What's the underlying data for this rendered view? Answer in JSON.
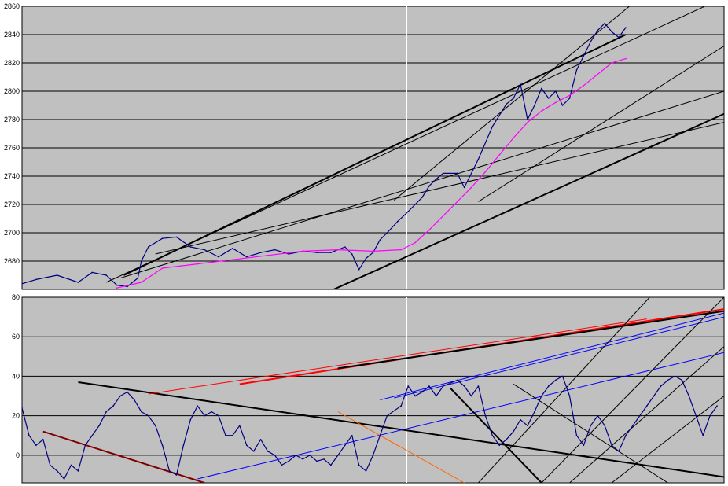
{
  "chart_data": [
    {
      "type": "line",
      "title": "",
      "xlabel": "",
      "ylabel": "",
      "ylim": [
        2660,
        2860
      ],
      "yticks": [
        "2860",
        "2840",
        "2820",
        "2800",
        "2780",
        "2760",
        "2740",
        "2720",
        "2700",
        "2680"
      ],
      "grid": true,
      "plot_background": "#c0c0c0",
      "series": [
        {
          "color": "#000080",
          "points": [
            [
              0,
              2664
            ],
            [
              0.02,
              2667
            ],
            [
              0.05,
              2670
            ],
            [
              0.08,
              2665
            ],
            [
              0.1,
              2672
            ],
            [
              0.12,
              2670
            ],
            [
              0.135,
              2663
            ],
            [
              0.15,
              2662
            ],
            [
              0.165,
              2668
            ],
            [
              0.17,
              2680
            ],
            [
              0.18,
              2690
            ],
            [
              0.2,
              2696
            ],
            [
              0.22,
              2697
            ],
            [
              0.24,
              2690
            ],
            [
              0.26,
              2688
            ],
            [
              0.28,
              2683
            ],
            [
              0.3,
              2689
            ],
            [
              0.32,
              2683
            ],
            [
              0.34,
              2686
            ],
            [
              0.36,
              2688
            ],
            [
              0.38,
              2685
            ],
            [
              0.4,
              2687
            ],
            [
              0.42,
              2686
            ],
            [
              0.44,
              2686
            ],
            [
              0.46,
              2690
            ],
            [
              0.47,
              2685
            ],
            [
              0.48,
              2674
            ],
            [
              0.49,
              2682
            ],
            [
              0.5,
              2686
            ],
            [
              0.51,
              2695
            ],
            [
              0.52,
              2700
            ],
            [
              0.535,
              2708
            ],
            [
              0.55,
              2715
            ],
            [
              0.57,
              2725
            ],
            [
              0.58,
              2733
            ],
            [
              0.59,
              2738
            ],
            [
              0.6,
              2742
            ],
            [
              0.62,
              2742
            ],
            [
              0.63,
              2732
            ],
            [
              0.65,
              2752
            ],
            [
              0.67,
              2775
            ],
            [
              0.69,
              2791
            ],
            [
              0.7,
              2795
            ],
            [
              0.71,
              2805
            ],
            [
              0.72,
              2780
            ],
            [
              0.73,
              2790
            ],
            [
              0.74,
              2802
            ],
            [
              0.75,
              2795
            ],
            [
              0.76,
              2800
            ],
            [
              0.77,
              2790
            ],
            [
              0.78,
              2795
            ],
            [
              0.79,
              2815
            ],
            [
              0.8,
              2825
            ],
            [
              0.81,
              2835
            ],
            [
              0.82,
              2843
            ],
            [
              0.83,
              2848
            ],
            [
              0.84,
              2842
            ],
            [
              0.85,
              2838
            ],
            [
              0.86,
              2845
            ]
          ]
        },
        {
          "color": "#ff00ff",
          "points": [
            [
              0.135,
              2661
            ],
            [
              0.17,
              2665
            ],
            [
              0.2,
              2675
            ],
            [
              0.25,
              2678
            ],
            [
              0.3,
              2681
            ],
            [
              0.35,
              2684
            ],
            [
              0.4,
              2687
            ],
            [
              0.45,
              2688
            ],
            [
              0.5,
              2687
            ],
            [
              0.54,
              2688
            ],
            [
              0.56,
              2693
            ],
            [
              0.58,
              2702
            ],
            [
              0.6,
              2712
            ],
            [
              0.62,
              2722
            ],
            [
              0.64,
              2732
            ],
            [
              0.66,
              2743
            ],
            [
              0.68,
              2755
            ],
            [
              0.7,
              2767
            ],
            [
              0.72,
              2778
            ],
            [
              0.74,
              2786
            ],
            [
              0.76,
              2792
            ],
            [
              0.78,
              2797
            ],
            [
              0.8,
              2804
            ],
            [
              0.82,
              2812
            ],
            [
              0.84,
              2820
            ],
            [
              0.86,
              2823
            ]
          ]
        }
      ],
      "trendlines": [
        {
          "color": "#000000",
          "width": 2,
          "points": [
            [
              0.145,
              2670
            ],
            [
              0.86,
              2840
            ]
          ]
        },
        {
          "color": "#000000",
          "width": 2,
          "points": [
            [
              0.435,
              2658
            ],
            [
              1.0,
              2784
            ]
          ]
        },
        {
          "color": "#000000",
          "width": 1,
          "points": [
            [
              0.12,
              2665
            ],
            [
              0.99,
              2864
            ]
          ]
        },
        {
          "color": "#000000",
          "width": 1,
          "points": [
            [
              0.14,
              2668
            ],
            [
              1.0,
              2800
            ]
          ]
        },
        {
          "color": "#000000",
          "width": 1,
          "points": [
            [
              0.19,
              2685
            ],
            [
              1.0,
              2778
            ]
          ]
        },
        {
          "color": "#000000",
          "width": 1,
          "points": [
            [
              0.53,
              2723
            ],
            [
              0.87,
              2862
            ]
          ]
        },
        {
          "color": "#000000",
          "width": 1,
          "points": [
            [
              0.65,
              2722
            ],
            [
              1.0,
              2832
            ]
          ]
        }
      ]
    },
    {
      "type": "line",
      "title": "",
      "xlabel": "",
      "ylabel": "",
      "ylim": [
        -14,
        80
      ],
      "yticks": [
        "80",
        "60",
        "40",
        "20",
        "0"
      ],
      "grid": true,
      "plot_background": "#c0c0c0",
      "series": [
        {
          "color": "#000080",
          "points": [
            [
              0,
              24
            ],
            [
              0.01,
              10
            ],
            [
              0.02,
              5
            ],
            [
              0.03,
              8
            ],
            [
              0.04,
              -5
            ],
            [
              0.05,
              -8
            ],
            [
              0.06,
              -12
            ],
            [
              0.07,
              -5
            ],
            [
              0.08,
              -8
            ],
            [
              0.09,
              5
            ],
            [
              0.1,
              10
            ],
            [
              0.11,
              15
            ],
            [
              0.12,
              22
            ],
            [
              0.13,
              25
            ],
            [
              0.14,
              30
            ],
            [
              0.15,
              32
            ],
            [
              0.16,
              28
            ],
            [
              0.17,
              22
            ],
            [
              0.18,
              20
            ],
            [
              0.19,
              15
            ],
            [
              0.2,
              5
            ],
            [
              0.21,
              -8
            ],
            [
              0.22,
              -10
            ],
            [
              0.23,
              5
            ],
            [
              0.24,
              18
            ],
            [
              0.25,
              25
            ],
            [
              0.26,
              20
            ],
            [
              0.27,
              22
            ],
            [
              0.28,
              20
            ],
            [
              0.29,
              10
            ],
            [
              0.3,
              10
            ],
            [
              0.31,
              15
            ],
            [
              0.32,
              5
            ],
            [
              0.33,
              2
            ],
            [
              0.34,
              8
            ],
            [
              0.35,
              2
            ],
            [
              0.36,
              0
            ],
            [
              0.37,
              -5
            ],
            [
              0.38,
              -3
            ],
            [
              0.39,
              0
            ],
            [
              0.4,
              -2
            ],
            [
              0.41,
              0
            ],
            [
              0.42,
              -3
            ],
            [
              0.43,
              -2
            ],
            [
              0.44,
              -5
            ],
            [
              0.45,
              0
            ],
            [
              0.46,
              5
            ],
            [
              0.47,
              10
            ],
            [
              0.48,
              -5
            ],
            [
              0.49,
              -8
            ],
            [
              0.5,
              0
            ],
            [
              0.51,
              10
            ],
            [
              0.52,
              20
            ],
            [
              0.54,
              25
            ],
            [
              0.55,
              35
            ],
            [
              0.56,
              30
            ],
            [
              0.57,
              32
            ],
            [
              0.58,
              35
            ],
            [
              0.59,
              30
            ],
            [
              0.6,
              35
            ],
            [
              0.62,
              38
            ],
            [
              0.63,
              35
            ],
            [
              0.64,
              30
            ],
            [
              0.65,
              35
            ],
            [
              0.66,
              20
            ],
            [
              0.67,
              10
            ],
            [
              0.68,
              5
            ],
            [
              0.69,
              8
            ],
            [
              0.7,
              12
            ],
            [
              0.71,
              18
            ],
            [
              0.72,
              15
            ],
            [
              0.73,
              22
            ],
            [
              0.74,
              30
            ],
            [
              0.75,
              35
            ],
            [
              0.76,
              38
            ],
            [
              0.77,
              40
            ],
            [
              0.78,
              30
            ],
            [
              0.79,
              10
            ],
            [
              0.8,
              5
            ],
            [
              0.81,
              15
            ],
            [
              0.82,
              20
            ],
            [
              0.83,
              15
            ],
            [
              0.84,
              5
            ],
            [
              0.85,
              2
            ],
            [
              0.86,
              10
            ],
            [
              0.87,
              15
            ],
            [
              0.88,
              20
            ],
            [
              0.89,
              25
            ],
            [
              0.9,
              30
            ],
            [
              0.91,
              35
            ],
            [
              0.92,
              38
            ],
            [
              0.93,
              40
            ],
            [
              0.94,
              38
            ],
            [
              0.95,
              30
            ],
            [
              0.96,
              20
            ],
            [
              0.97,
              10
            ],
            [
              0.98,
              20
            ],
            [
              0.99,
              25
            ]
          ]
        }
      ],
      "trendlines": [
        {
          "color": "#000000",
          "width": 2,
          "points": [
            [
              0.08,
              37
            ],
            [
              1.0,
              -11
            ]
          ]
        },
        {
          "color": "#800000",
          "width": 2,
          "points": [
            [
              0.03,
              12
            ],
            [
              0.26,
              -14
            ]
          ]
        },
        {
          "color": "#ff0000",
          "width": 1,
          "points": [
            [
              0.18,
              31
            ],
            [
              0.89,
              69
            ]
          ]
        },
        {
          "color": "#ff0000",
          "width": 2,
          "points": [
            [
              0.31,
              36
            ],
            [
              1.0,
              74
            ]
          ]
        },
        {
          "color": "#000000",
          "width": 2,
          "points": [
            [
              0.45,
              44
            ],
            [
              1.0,
              73
            ]
          ]
        },
        {
          "color": "#0000ff",
          "width": 1,
          "points": [
            [
              0.25,
              -12
            ],
            [
              1.0,
              52
            ]
          ]
        },
        {
          "color": "#0000ff",
          "width": 1,
          "points": [
            [
              0.51,
              28
            ],
            [
              1.0,
              72
            ]
          ]
        },
        {
          "color": "#0000ff",
          "width": 1,
          "points": [
            [
              0.53,
              29
            ],
            [
              1.0,
              70
            ]
          ]
        },
        {
          "color": "#ff6600",
          "width": 1,
          "points": [
            [
              0.45,
              22
            ],
            [
              0.63,
              -14
            ]
          ]
        },
        {
          "color": "#000000",
          "width": 2,
          "points": [
            [
              0.61,
              34
            ],
            [
              0.74,
              -14
            ]
          ]
        },
        {
          "color": "#000000",
          "width": 1,
          "points": [
            [
              0.7,
              36
            ],
            [
              0.92,
              -14
            ]
          ]
        },
        {
          "color": "#000000",
          "width": 1,
          "points": [
            [
              0.65,
              -14
            ],
            [
              0.92,
              90
            ]
          ]
        },
        {
          "color": "#000000",
          "width": 1,
          "points": [
            [
              0.74,
              -14
            ],
            [
              1.0,
              80
            ]
          ]
        },
        {
          "color": "#000000",
          "width": 1,
          "points": [
            [
              0.84,
              -14
            ],
            [
              1.0,
              30
            ]
          ]
        },
        {
          "color": "#000000",
          "width": 1,
          "points": [
            [
              0.78,
              -14
            ],
            [
              1.0,
              55
            ]
          ]
        }
      ]
    }
  ]
}
